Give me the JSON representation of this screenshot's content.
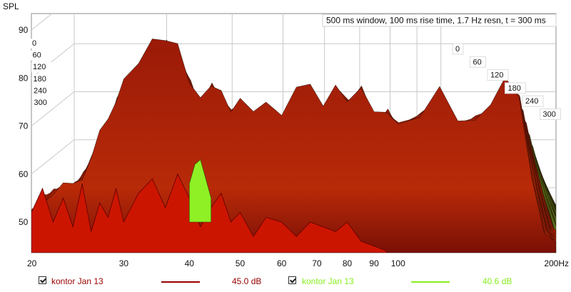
{
  "chart_data": {
    "type": "waterfall",
    "ylabel": "SPL",
    "xunit": "Hz",
    "info": "500 ms window, 100 ms rise time,  1.7 Hz resn, t = 300 ms",
    "y_ticks": [
      "90",
      "80",
      "70",
      "60",
      "50"
    ],
    "ylim": [
      44,
      92
    ],
    "x_ticks": [
      "20",
      "30",
      "40",
      "50",
      "60",
      "70",
      "80",
      "90",
      "100",
      "200Hz"
    ],
    "x_tick_values": [
      20,
      30,
      40,
      50,
      60,
      70,
      80,
      90,
      100,
      200
    ],
    "xlim": [
      20,
      200
    ],
    "xscale": "log",
    "time_labels_left": [
      "0",
      "60",
      "120",
      "180",
      "240",
      "300"
    ],
    "time_labels_right": [
      "0",
      "60",
      "120",
      "180",
      "240",
      "300"
    ],
    "time_unit": "ms",
    "front_slice": {
      "x": [
        20,
        21,
        22,
        23,
        24,
        25,
        26,
        27,
        28,
        29,
        30,
        32,
        34,
        36,
        38,
        40,
        42,
        44,
        46,
        48,
        50,
        53,
        56,
        60,
        64,
        68,
        72,
        76,
        80,
        85,
        90,
        95
      ],
      "y": [
        52,
        57,
        50,
        55,
        49,
        58,
        48,
        54,
        51,
        57,
        50,
        56,
        59,
        53,
        60,
        55,
        49,
        53,
        56,
        50,
        52,
        47,
        51,
        50,
        47,
        50,
        49,
        48,
        50,
        46,
        45,
        44
      ]
    },
    "green_peak": {
      "x": [
        40,
        41,
        42,
        43,
        44
      ],
      "y": [
        58,
        62,
        63,
        59,
        55
      ]
    },
    "series": [
      {
        "name": "kontor Jan 13",
        "color": "#990000",
        "level": "45.0 dB"
      },
      {
        "name": "kontor Jan 13",
        "color": "#88ee22",
        "level": "40.6 dB"
      }
    ]
  },
  "legend": [
    {
      "checked": true,
      "label": "kontor Jan 13",
      "level": "45.0 dB",
      "color": "#990000",
      "text_color": "#990000"
    },
    {
      "checked": true,
      "label": "kontor Jan 13",
      "level": "40.6 dB",
      "color": "#88ee22",
      "text_color": "#88ee22"
    }
  ]
}
